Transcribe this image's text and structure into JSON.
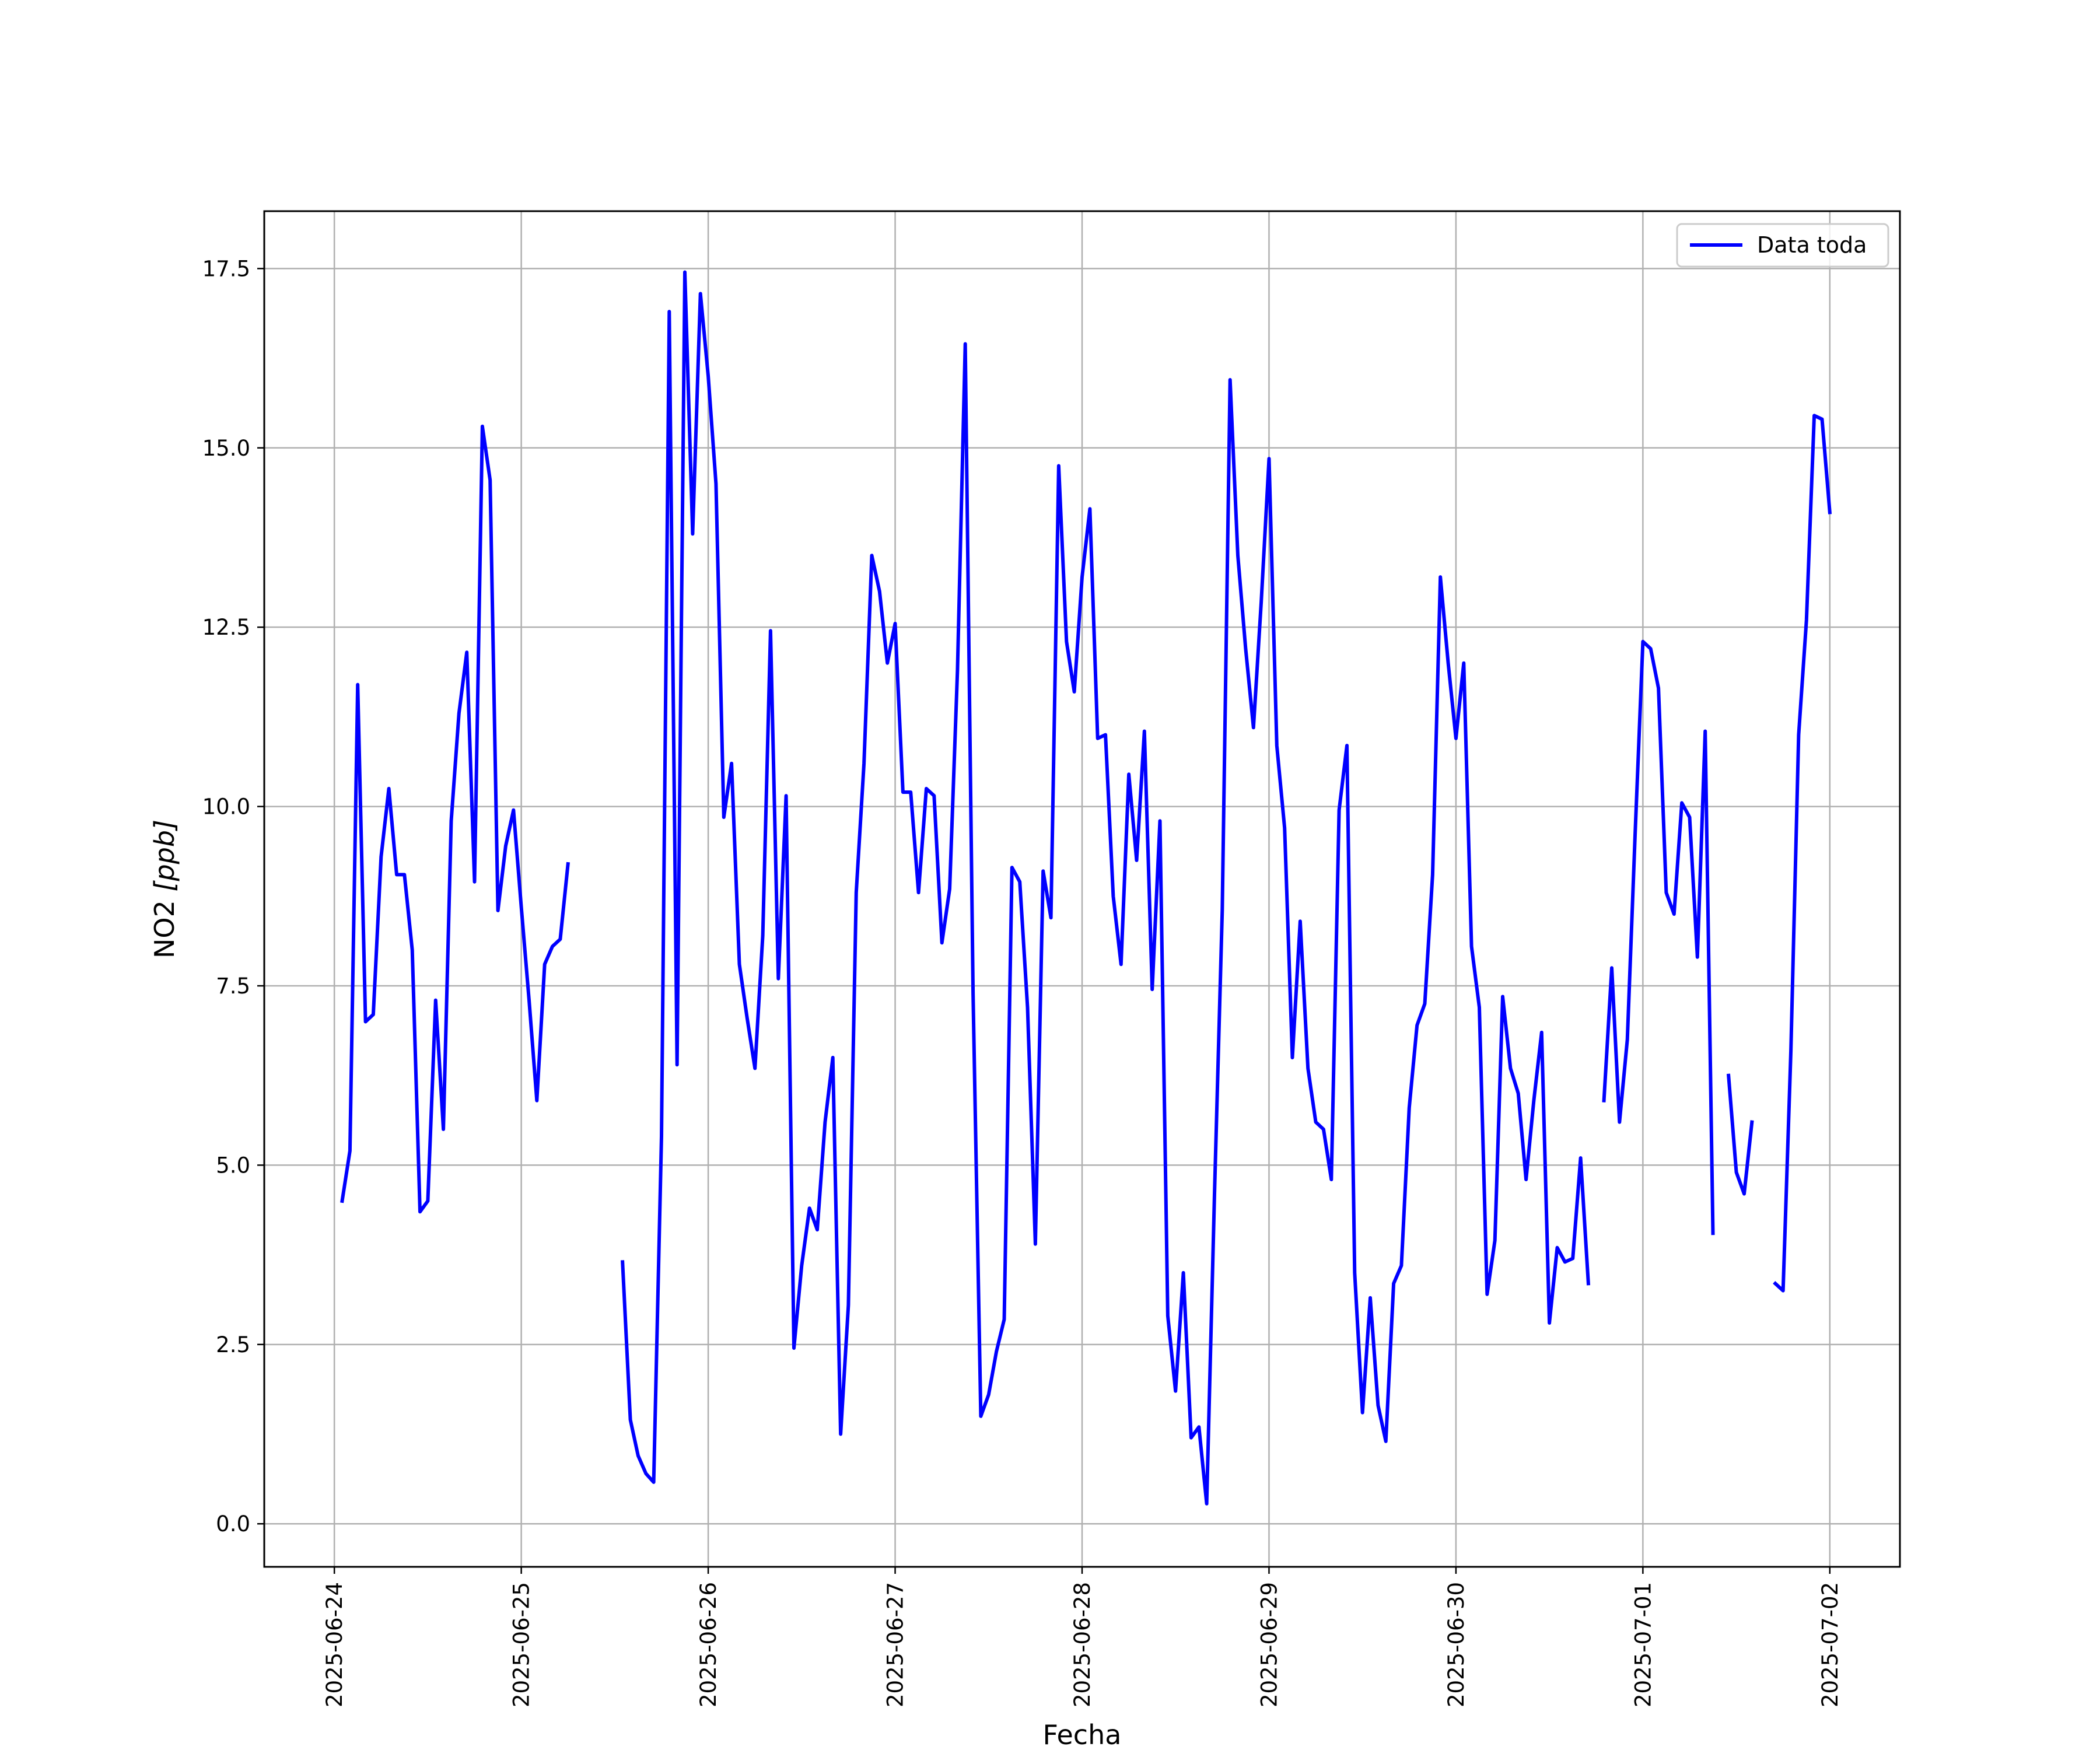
{
  "chart_data": {
    "type": "line",
    "xlabel": "Fecha",
    "ylabel": "NO2 [ppb]",
    "ylabel_main": "NO2 ",
    "ylabel_unit": "[ppb]",
    "x_ticks": [
      "2025-06-24",
      "2025-06-25",
      "2025-06-26",
      "2025-06-27",
      "2025-06-28",
      "2025-06-29",
      "2025-06-30",
      "2025-07-01",
      "2025-07-02"
    ],
    "y_ticks": [
      "0.0",
      "2.5",
      "5.0",
      "7.5",
      "10.0",
      "12.5",
      "15.0",
      "17.5"
    ],
    "xlim": [
      "2025-06-23 15:00",
      "2025-07-02 09:00"
    ],
    "ylim": [
      -0.6,
      18.3
    ],
    "grid": true,
    "legend_position": "top-right",
    "series": [
      {
        "name": "Data toda",
        "color": "#0000ff",
        "segments": [
          [
            [
              "2025-06-24 01:00",
              4.5
            ],
            [
              "2025-06-24 02:00",
              5.2
            ],
            [
              "2025-06-24 03:00",
              11.7
            ],
            [
              "2025-06-24 04:00",
              7.0
            ],
            [
              "2025-06-24 05:00",
              7.1
            ],
            [
              "2025-06-24 06:00",
              9.3
            ],
            [
              "2025-06-24 07:00",
              10.25
            ],
            [
              "2025-06-24 08:00",
              9.05
            ],
            [
              "2025-06-24 09:00",
              9.05
            ],
            [
              "2025-06-24 10:00",
              8.0
            ],
            [
              "2025-06-24 11:00",
              4.35
            ],
            [
              "2025-06-24 12:00",
              4.5
            ],
            [
              "2025-06-24 13:00",
              7.3
            ],
            [
              "2025-06-24 14:00",
              5.5
            ],
            [
              "2025-06-24 15:00",
              9.8
            ],
            [
              "2025-06-24 16:00",
              11.3
            ],
            [
              "2025-06-24 17:00",
              12.15
            ],
            [
              "2025-06-24 18:00",
              8.95
            ],
            [
              "2025-06-24 19:00",
              15.3
            ],
            [
              "2025-06-24 20:00",
              14.55
            ],
            [
              "2025-06-24 21:00",
              8.55
            ],
            [
              "2025-06-24 22:00",
              9.45
            ],
            [
              "2025-06-24 23:00",
              9.95
            ],
            [
              "2025-06-25 00:00",
              8.6
            ],
            [
              "2025-06-25 01:00",
              7.3
            ],
            [
              "2025-06-25 02:00",
              5.9
            ],
            [
              "2025-06-25 03:00",
              7.8
            ],
            [
              "2025-06-25 04:00",
              8.05
            ],
            [
              "2025-06-25 05:00",
              8.15
            ],
            [
              "2025-06-25 06:00",
              9.2
            ]
          ],
          [
            [
              "2025-06-25 13:00",
              3.65
            ],
            [
              "2025-06-25 14:00",
              1.45
            ],
            [
              "2025-06-25 15:00",
              0.95
            ],
            [
              "2025-06-25 16:00",
              0.7
            ],
            [
              "2025-06-25 17:00",
              0.58
            ],
            [
              "2025-06-25 18:00",
              5.4
            ],
            [
              "2025-06-25 19:00",
              16.9
            ],
            [
              "2025-06-25 20:00",
              6.4
            ],
            [
              "2025-06-25 21:00",
              17.45
            ],
            [
              "2025-06-25 22:00",
              13.8
            ],
            [
              "2025-06-25 23:00",
              17.15
            ],
            [
              "2025-06-26 00:00",
              16.0
            ],
            [
              "2025-06-26 01:00",
              14.5
            ],
            [
              "2025-06-26 02:00",
              9.85
            ],
            [
              "2025-06-26 03:00",
              10.6
            ],
            [
              "2025-06-26 04:00",
              7.8
            ],
            [
              "2025-06-26 05:00",
              7.05
            ],
            [
              "2025-06-26 06:00",
              6.35
            ],
            [
              "2025-06-26 07:00",
              8.2
            ],
            [
              "2025-06-26 08:00",
              12.45
            ],
            [
              "2025-06-26 09:00",
              7.6
            ],
            [
              "2025-06-26 10:00",
              10.15
            ],
            [
              "2025-06-26 11:00",
              2.45
            ],
            [
              "2025-06-26 12:00",
              3.6
            ],
            [
              "2025-06-26 13:00",
              4.4
            ],
            [
              "2025-06-26 14:00",
              4.1
            ],
            [
              "2025-06-26 15:00",
              5.6
            ],
            [
              "2025-06-26 16:00",
              6.5
            ],
            [
              "2025-06-26 17:00",
              1.25
            ],
            [
              "2025-06-26 18:00",
              3.05
            ],
            [
              "2025-06-26 19:00",
              8.8
            ],
            [
              "2025-06-26 20:00",
              10.6
            ],
            [
              "2025-06-26 21:00",
              13.5
            ],
            [
              "2025-06-26 22:00",
              13.0
            ],
            [
              "2025-06-26 23:00",
              12.0
            ],
            [
              "2025-06-27 00:00",
              12.55
            ],
            [
              "2025-06-27 01:00",
              10.2
            ],
            [
              "2025-06-27 02:00",
              10.2
            ],
            [
              "2025-06-27 03:00",
              8.8
            ],
            [
              "2025-06-27 04:00",
              10.25
            ],
            [
              "2025-06-27 05:00",
              10.15
            ],
            [
              "2025-06-27 06:00",
              8.1
            ],
            [
              "2025-06-27 07:00",
              8.85
            ],
            [
              "2025-06-27 08:00",
              11.9
            ],
            [
              "2025-06-27 09:00",
              16.45
            ],
            [
              "2025-06-27 10:00",
              7.4
            ],
            [
              "2025-06-27 11:00",
              1.5
            ],
            [
              "2025-06-27 12:00",
              1.8
            ],
            [
              "2025-06-27 13:00",
              2.4
            ],
            [
              "2025-06-27 14:00",
              2.85
            ],
            [
              "2025-06-27 15:00",
              9.15
            ],
            [
              "2025-06-27 16:00",
              8.95
            ],
            [
              "2025-06-27 17:00",
              7.2
            ],
            [
              "2025-06-27 18:00",
              3.9
            ],
            [
              "2025-06-27 19:00",
              9.1
            ],
            [
              "2025-06-27 20:00",
              8.45
            ],
            [
              "2025-06-27 21:00",
              14.75
            ],
            [
              "2025-06-27 22:00",
              12.3
            ],
            [
              "2025-06-27 23:00",
              11.6
            ],
            [
              "2025-06-28 00:00",
              13.2
            ],
            [
              "2025-06-28 01:00",
              14.15
            ],
            [
              "2025-06-28 02:00",
              10.95
            ],
            [
              "2025-06-28 03:00",
              11.0
            ],
            [
              "2025-06-28 04:00",
              8.75
            ],
            [
              "2025-06-28 05:00",
              7.8
            ],
            [
              "2025-06-28 06:00",
              10.45
            ],
            [
              "2025-06-28 07:00",
              9.25
            ],
            [
              "2025-06-28 08:00",
              11.05
            ],
            [
              "2025-06-28 09:00",
              7.45
            ],
            [
              "2025-06-28 10:00",
              9.8
            ],
            [
              "2025-06-28 11:00",
              2.9
            ],
            [
              "2025-06-28 12:00",
              1.85
            ],
            [
              "2025-06-28 13:00",
              3.5
            ],
            [
              "2025-06-28 14:00",
              1.2
            ],
            [
              "2025-06-28 15:00",
              1.35
            ],
            [
              "2025-06-28 16:00",
              0.28
            ],
            [
              "2025-06-28 17:00",
              4.6
            ],
            [
              "2025-06-28 18:00",
              8.55
            ],
            [
              "2025-06-28 19:00",
              15.95
            ],
            [
              "2025-06-28 20:00",
              13.5
            ],
            [
              "2025-06-28 21:00",
              12.2
            ],
            [
              "2025-06-28 22:00",
              11.1
            ],
            [
              "2025-06-28 23:00",
              12.85
            ],
            [
              "2025-06-29 00:00",
              14.85
            ],
            [
              "2025-06-29 01:00",
              10.85
            ],
            [
              "2025-06-29 02:00",
              9.7
            ],
            [
              "2025-06-29 03:00",
              6.5
            ],
            [
              "2025-06-29 04:00",
              8.4
            ],
            [
              "2025-06-29 05:00",
              6.35
            ],
            [
              "2025-06-29 06:00",
              5.6
            ],
            [
              "2025-06-29 07:00",
              5.5
            ],
            [
              "2025-06-29 08:00",
              4.8
            ],
            [
              "2025-06-29 09:00",
              9.95
            ],
            [
              "2025-06-29 10:00",
              10.85
            ],
            [
              "2025-06-29 11:00",
              3.5
            ],
            [
              "2025-06-29 12:00",
              1.55
            ],
            [
              "2025-06-29 13:00",
              3.15
            ],
            [
              "2025-06-29 14:00",
              1.65
            ],
            [
              "2025-06-29 15:00",
              1.15
            ],
            [
              "2025-06-29 16:00",
              3.35
            ],
            [
              "2025-06-29 17:00",
              3.6
            ],
            [
              "2025-06-29 18:00",
              5.8
            ],
            [
              "2025-06-29 19:00",
              6.95
            ],
            [
              "2025-06-29 20:00",
              7.25
            ],
            [
              "2025-06-29 21:00",
              9.05
            ],
            [
              "2025-06-29 22:00",
              13.2
            ],
            [
              "2025-06-29 23:00",
              12.0
            ],
            [
              "2025-06-30 00:00",
              10.95
            ],
            [
              "2025-06-30 01:00",
              12.0
            ],
            [
              "2025-06-30 02:00",
              8.05
            ],
            [
              "2025-06-30 03:00",
              7.2
            ],
            [
              "2025-06-30 04:00",
              3.2
            ],
            [
              "2025-06-30 05:00",
              3.95
            ],
            [
              "2025-06-30 06:00",
              7.35
            ],
            [
              "2025-06-30 07:00",
              6.35
            ],
            [
              "2025-06-30 08:00",
              6.0
            ],
            [
              "2025-06-30 09:00",
              4.8
            ],
            [
              "2025-06-30 10:00",
              5.9
            ],
            [
              "2025-06-30 11:00",
              6.85
            ],
            [
              "2025-06-30 12:00",
              2.8
            ],
            [
              "2025-06-30 13:00",
              3.85
            ],
            [
              "2025-06-30 14:00",
              3.65
            ],
            [
              "2025-06-30 15:00",
              3.7
            ],
            [
              "2025-06-30 16:00",
              5.1
            ],
            [
              "2025-06-30 17:00",
              3.35
            ]
          ],
          [
            [
              "2025-06-30 19:00",
              5.9
            ],
            [
              "2025-06-30 20:00",
              7.75
            ],
            [
              "2025-06-30 21:00",
              5.6
            ],
            [
              "2025-06-30 22:00",
              6.75
            ],
            [
              "2025-06-30 23:00",
              9.6
            ],
            [
              "2025-07-01 00:00",
              12.3
            ],
            [
              "2025-07-01 01:00",
              12.2
            ],
            [
              "2025-07-01 02:00",
              11.65
            ],
            [
              "2025-07-01 03:00",
              8.8
            ],
            [
              "2025-07-01 04:00",
              8.5
            ],
            [
              "2025-07-01 05:00",
              10.05
            ],
            [
              "2025-07-01 06:00",
              9.85
            ],
            [
              "2025-07-01 07:00",
              7.9
            ],
            [
              "2025-07-01 08:00",
              11.05
            ],
            [
              "2025-07-01 09:00",
              4.05
            ]
          ],
          [
            [
              "2025-07-01 11:00",
              6.25
            ],
            [
              "2025-07-01 12:00",
              4.9
            ],
            [
              "2025-07-01 13:00",
              4.6
            ],
            [
              "2025-07-01 14:00",
              5.6
            ]
          ],
          [
            [
              "2025-07-01 17:00",
              3.35
            ],
            [
              "2025-07-01 18:00",
              3.25
            ],
            [
              "2025-07-01 19:00",
              6.6
            ],
            [
              "2025-07-01 20:00",
              11.0
            ],
            [
              "2025-07-01 21:00",
              12.6
            ],
            [
              "2025-07-01 22:00",
              15.45
            ],
            [
              "2025-07-01 23:00",
              15.4
            ],
            [
              "2025-07-02 00:00",
              14.1
            ]
          ]
        ]
      }
    ]
  }
}
